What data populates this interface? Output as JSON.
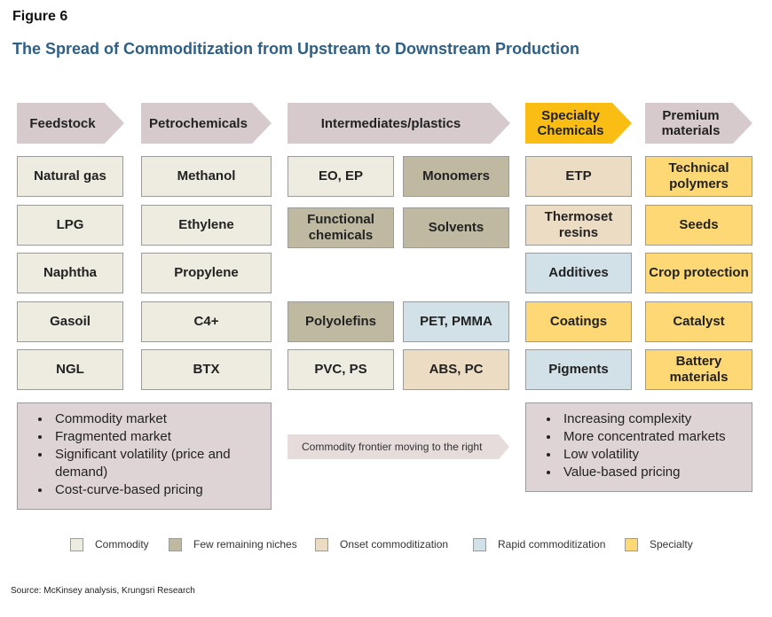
{
  "figure_label": "Figure 6",
  "title": "The Spread of Commoditization from Upstream to Downstream Production",
  "stages": [
    {
      "label": "Feedstock"
    },
    {
      "label": "Petrochemicals"
    },
    {
      "label": "Intermediates/plastics"
    },
    {
      "label": "Specialty Chemicals"
    },
    {
      "label": "Premium materials"
    }
  ],
  "feedstock": [
    "Natural gas",
    "LPG",
    "Naphtha",
    "Gasoil",
    "NGL"
  ],
  "petrochemicals": [
    "Methanol",
    "Ethylene",
    "Propylene",
    "C4+",
    "BTX"
  ],
  "intermediates": [
    "EO, EP",
    "Monomers",
    "Functional chemicals",
    "Solvents",
    "Polyolefins",
    "PET, PMMA",
    "PVC, PS",
    "ABS, PC"
  ],
  "specialty": [
    "ETP",
    "Thermoset resins",
    "Additives",
    "Coatings",
    "Pigments"
  ],
  "premium": [
    "Technical polymers",
    "Seeds",
    "Crop protection",
    "Catalyst",
    "Battery materials"
  ],
  "left_notes": [
    "Commodity market",
    "Fragmented market",
    "Significant volatility (price and demand)",
    "Cost-curve-based pricing"
  ],
  "right_notes": [
    "Increasing complexity",
    "More concentrated markets",
    "Low volatility",
    "Value-based pricing"
  ],
  "frontier_label": "Commodity frontier moving to the right",
  "legend": [
    {
      "label": "Commodity",
      "color": "#eeebe1"
    },
    {
      "label": "Few remaining niches",
      "color": "#c0b9a2"
    },
    {
      "label": "Onset commoditization",
      "color": "#ecdcc3"
    },
    {
      "label": "Rapid commoditization",
      "color": "#d1e1e7"
    },
    {
      "label": "Specialty",
      "color": "#fdd875"
    }
  ],
  "source": "Source: McKinsey analysis, Krungsri Research"
}
